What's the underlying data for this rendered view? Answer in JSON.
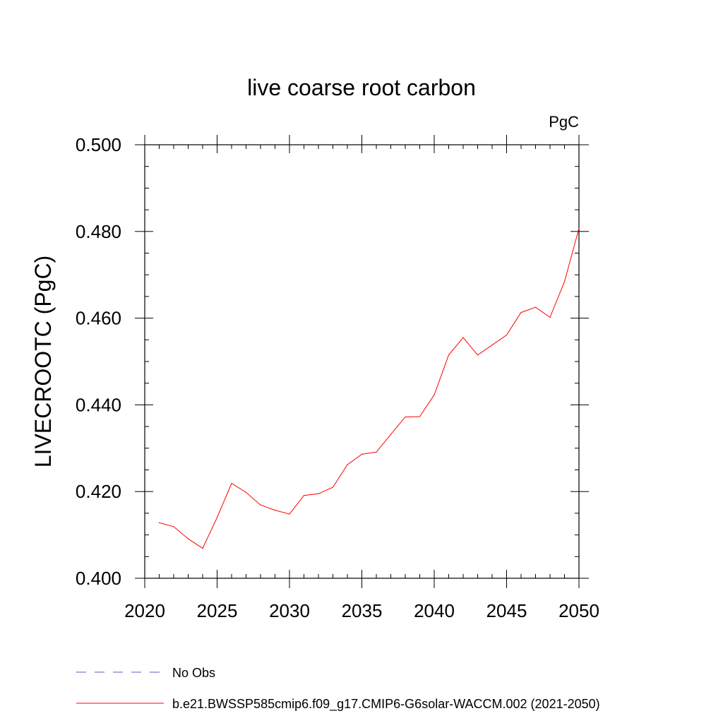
{
  "chart_data": {
    "type": "line",
    "title": "live coarse root carbon",
    "units_label": "PgC",
    "xlabel": "",
    "ylabel": "LIVECROOTC  (PgC)",
    "xlim": [
      2020,
      2050
    ],
    "ylim": [
      0.4,
      0.5
    ],
    "x_ticks": [
      "2020",
      "2025",
      "2030",
      "2035",
      "2040",
      "2045",
      "2050"
    ],
    "y_ticks": [
      "0.400",
      "0.420",
      "0.440",
      "0.460",
      "0.480",
      "0.500"
    ],
    "grid": false,
    "legend_position": "bottom",
    "series": [
      {
        "name": "No Obs",
        "color": "#5b5bbd",
        "style": "dashed",
        "x": [],
        "y": []
      },
      {
        "name": "b.e21.BWSSP585cmip6.f09_g17.CMIP6-G6solar-WACCM.002 (2021-2050)",
        "color": "#ff0000",
        "style": "solid",
        "x": [
          2021,
          2022,
          2023,
          2024,
          2025,
          2026,
          2027,
          2028,
          2029,
          2030,
          2031,
          2032,
          2033,
          2034,
          2035,
          2036,
          2037,
          2038,
          2039,
          2040,
          2041,
          2042,
          2043,
          2044,
          2045,
          2046,
          2047,
          2048,
          2049,
          2050
        ],
        "y": [
          0.4128,
          0.4119,
          0.4091,
          0.4069,
          0.414,
          0.4219,
          0.4198,
          0.4169,
          0.4157,
          0.4148,
          0.4191,
          0.4195,
          0.421,
          0.4262,
          0.4286,
          0.4291,
          0.4332,
          0.4372,
          0.4373,
          0.4423,
          0.4515,
          0.4555,
          0.4515,
          0.4538,
          0.4561,
          0.4613,
          0.4625,
          0.4602,
          0.4684,
          0.4807
        ]
      }
    ]
  }
}
